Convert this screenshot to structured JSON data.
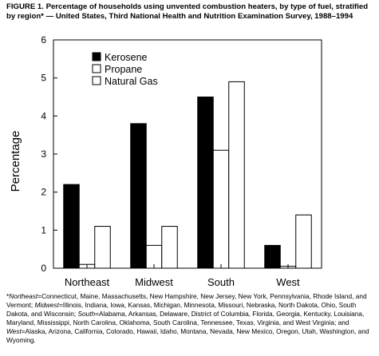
{
  "figure": {
    "title": "FIGURE 1. Percentage of households using unvented combustion heaters, by type of fuel, stratified by region* — United States, Third National Health and Nutrition Examination Survey, 1988–1994"
  },
  "chart_data": {
    "type": "bar",
    "title": "",
    "xlabel": "",
    "ylabel": "Percentage",
    "ylim": [
      0,
      6
    ],
    "yticks": [
      "0",
      "1",
      "2",
      "3",
      "4",
      "5",
      "6"
    ],
    "grid": false,
    "legend_position": "top-left",
    "categories": [
      "Northeast",
      "Midwest",
      "South",
      "West"
    ],
    "series": [
      {
        "name": "Kerosene",
        "values": [
          2.2,
          3.8,
          4.5,
          0.6
        ],
        "fill": "#000000"
      },
      {
        "name": "Propane",
        "values": [
          0.1,
          0.6,
          3.1,
          0.05
        ],
        "fill": "#ffffff"
      },
      {
        "name": "Natural Gas",
        "values": [
          1.1,
          1.1,
          4.9,
          1.4
        ],
        "fill": "#ffffff"
      }
    ]
  },
  "footnote": {
    "segments": [
      {
        "text": "*",
        "em": false
      },
      {
        "text": "Northeast",
        "em": true
      },
      {
        "text": "=Connecticut, Maine, Massachusetts, New Hampshire, New Jersey, New York, Pennsylvania, Rhode Island, and Vermont; ",
        "em": false
      },
      {
        "text": "Midwest",
        "em": true
      },
      {
        "text": "=Illinois, Indiana, Iowa, Kansas, Michigan, Minnesota, Missouri, Nebraska, North Dakota, Ohio, South Dakota, and Wisconsin; ",
        "em": false
      },
      {
        "text": "South",
        "em": true
      },
      {
        "text": "=Alabama, Arkansas, Delaware, District of Columbia, Florida, Georgia, Kentucky, Louisiana, Maryland, Mississippi, North Carolina, Oklahoma, South Carolina, Tennessee, Texas, Virginia, and West Virginia; and ",
        "em": false
      },
      {
        "text": "West",
        "em": true
      },
      {
        "text": "=Alaska, Arizona, California, Colorado, Hawaii, Idaho, Montana, Nevada, New Mexico, Oregon, Utah, Washington, and Wyoming.",
        "em": false
      }
    ]
  }
}
